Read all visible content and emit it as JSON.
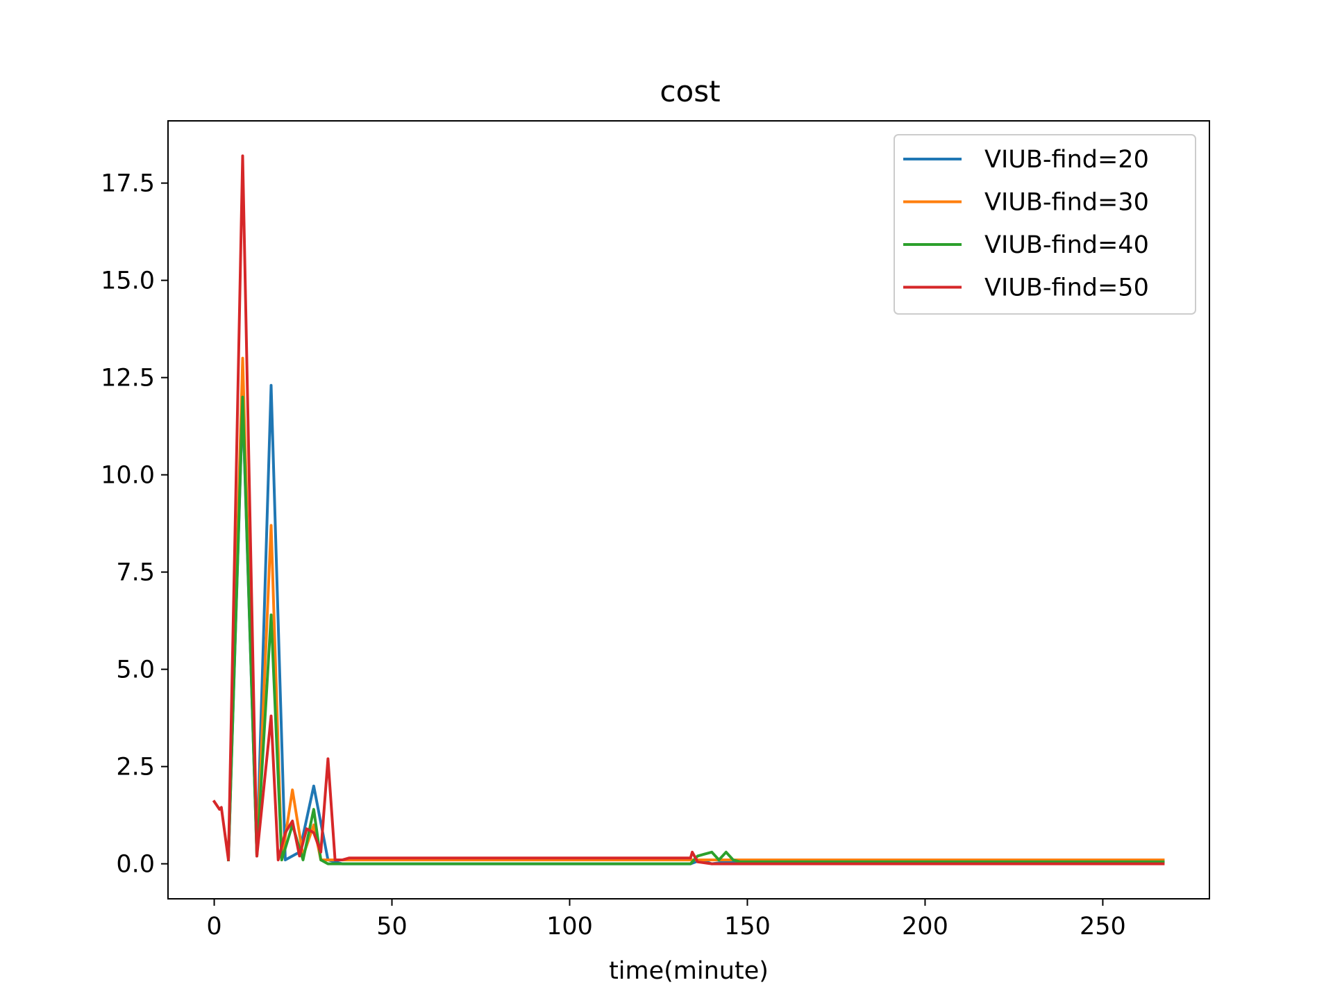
{
  "chart_data": {
    "type": "line",
    "title": "cost",
    "xlabel": "time(minute)",
    "ylabel": "",
    "xlim": [
      -13,
      280
    ],
    "ylim": [
      -0.9,
      19.1
    ],
    "xticks": [
      0,
      50,
      100,
      150,
      200,
      250
    ],
    "xtick_labels": [
      "0",
      "50",
      "100",
      "150",
      "200",
      "250"
    ],
    "yticks": [
      0.0,
      2.5,
      5.0,
      7.5,
      10.0,
      12.5,
      15.0,
      17.5
    ],
    "ytick_labels": [
      "0.0",
      "2.5",
      "5.0",
      "7.5",
      "10.0",
      "12.5",
      "15.0",
      "17.5"
    ],
    "grid": false,
    "legend_position": "top-right",
    "series": [
      {
        "name": "VIUB-find=20",
        "color": "#1f77b4",
        "x": [
          4,
          8,
          12,
          16,
          20,
          24,
          28,
          32,
          36,
          40,
          134,
          137,
          140,
          144,
          148,
          267
        ],
        "y": [
          0.1,
          11.9,
          0.2,
          12.3,
          0.1,
          0.3,
          2.0,
          0.1,
          0.0,
          0.0,
          0.0,
          0.1,
          0.0,
          0.05,
          0.05,
          0.05
        ]
      },
      {
        "name": "VIUB-find=30",
        "color": "#ff7f0e",
        "x": [
          4,
          8,
          12,
          16,
          19,
          22,
          25,
          28,
          30,
          32,
          134,
          267
        ],
        "y": [
          0.15,
          13.0,
          0.2,
          8.7,
          0.1,
          1.9,
          0.2,
          1.0,
          0.1,
          0.1,
          0.1,
          0.1
        ]
      },
      {
        "name": "VIUB-find=40",
        "color": "#2ca02c",
        "x": [
          4,
          8,
          12,
          16,
          19,
          22,
          25,
          28,
          30,
          32,
          134,
          136,
          138,
          140,
          142,
          144,
          146,
          148,
          267
        ],
        "y": [
          0.1,
          12.0,
          0.2,
          6.4,
          0.1,
          1.0,
          0.1,
          1.4,
          0.1,
          0.0,
          0.0,
          0.2,
          0.25,
          0.3,
          0.1,
          0.3,
          0.1,
          0.05,
          0.05
        ]
      },
      {
        "name": "VIUB-find=50",
        "color": "#d62728",
        "x": [
          0,
          1.5,
          2,
          4,
          8,
          12,
          16,
          18,
          20,
          22,
          24,
          26,
          28,
          30,
          32,
          34,
          36,
          38,
          134,
          134.5,
          136,
          140,
          267
        ],
        "y": [
          1.6,
          1.4,
          1.45,
          0.1,
          18.2,
          0.2,
          3.8,
          0.1,
          0.8,
          1.1,
          0.2,
          0.9,
          0.8,
          0.3,
          2.7,
          0.1,
          0.1,
          0.15,
          0.15,
          0.3,
          0.05,
          0.0,
          0.0
        ]
      }
    ]
  }
}
